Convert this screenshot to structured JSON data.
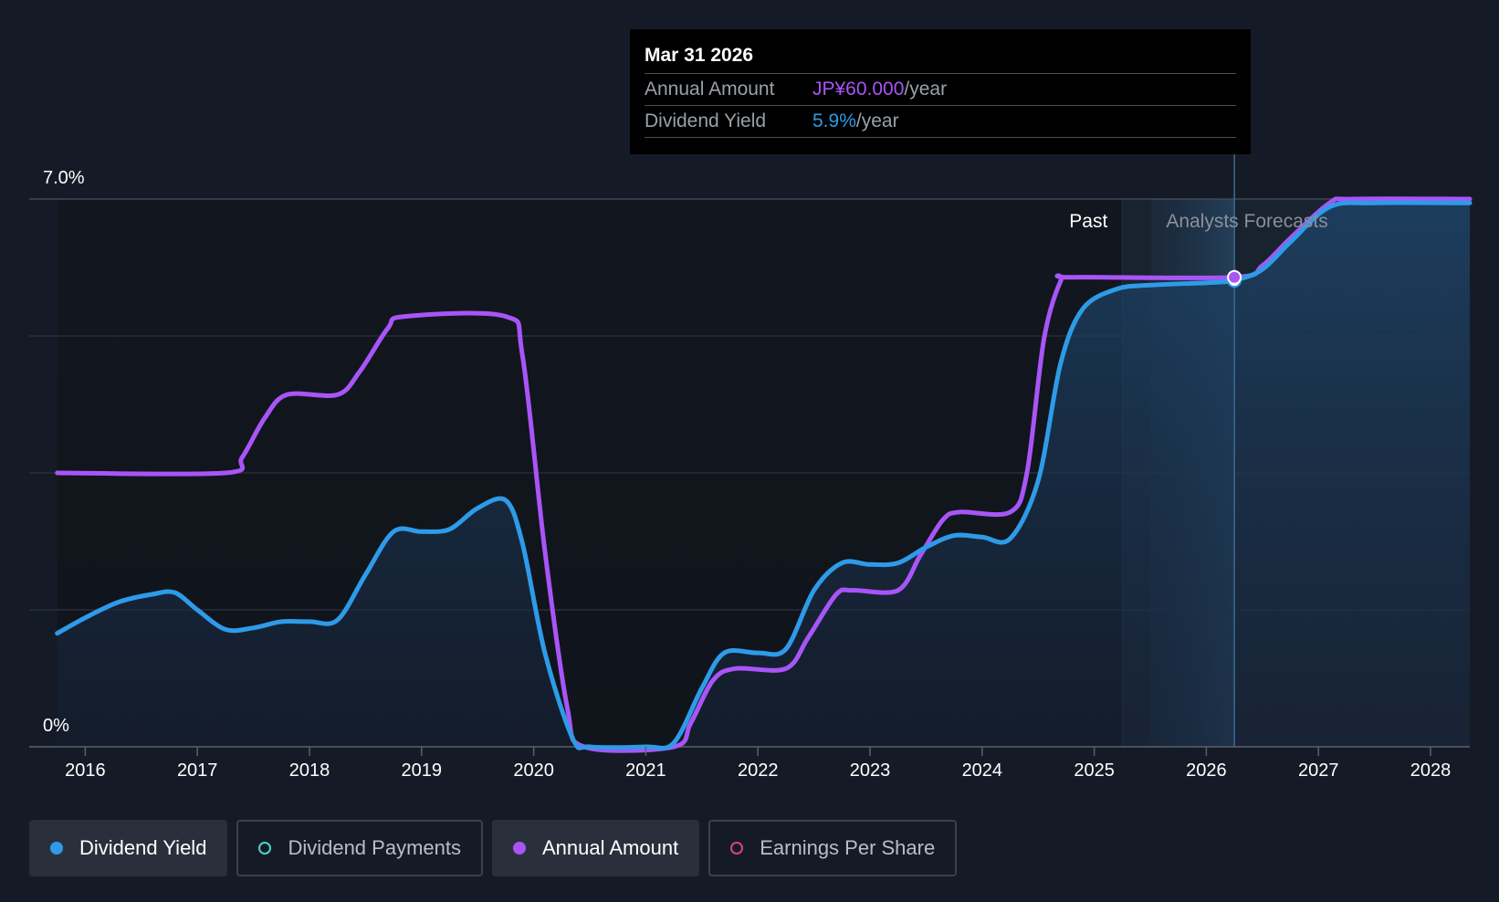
{
  "tooltip": {
    "date": "Mar 31 2026",
    "rows": [
      {
        "label": "Annual Amount",
        "value": "JP¥60.000",
        "unit": "/year",
        "color": "#a855f7"
      },
      {
        "label": "Dividend Yield",
        "value": "5.9%",
        "unit": "/year",
        "color": "#2e9be8"
      }
    ]
  },
  "legend": [
    {
      "label": "Dividend Yield",
      "color": "#2e9be8",
      "active": true,
      "filled": true
    },
    {
      "label": "Dividend Payments",
      "color": "#4fd1c5",
      "active": false,
      "filled": false
    },
    {
      "label": "Annual Amount",
      "color": "#a855f7",
      "active": true,
      "filled": true
    },
    {
      "label": "Earnings Per Share",
      "color": "#d6467d",
      "active": false,
      "filled": false
    }
  ],
  "chart_data": {
    "type": "line",
    "ylim": [
      0,
      7.0
    ],
    "y_tick_labels": [
      "0%",
      "7.0%"
    ],
    "x_tick_labels": [
      "2016",
      "2017",
      "2018",
      "2019",
      "2020",
      "2021",
      "2022",
      "2023",
      "2024",
      "2025",
      "2026",
      "2027",
      "2028"
    ],
    "xlim": [
      2015.5,
      2028.35
    ],
    "region_labels": {
      "past": "Past",
      "forecast": "Analysts Forecasts"
    },
    "highlight": {
      "x": 2026.25
    },
    "series": [
      {
        "name": "Dividend Yield",
        "color": "#2e9be8",
        "points": [
          [
            2015.75,
            1.45
          ],
          [
            2016.0,
            1.65
          ],
          [
            2016.3,
            1.85
          ],
          [
            2016.6,
            1.95
          ],
          [
            2016.8,
            1.97
          ],
          [
            2017.0,
            1.75
          ],
          [
            2017.25,
            1.5
          ],
          [
            2017.5,
            1.52
          ],
          [
            2017.75,
            1.6
          ],
          [
            2018.0,
            1.6
          ],
          [
            2018.25,
            1.62
          ],
          [
            2018.5,
            2.2
          ],
          [
            2018.75,
            2.75
          ],
          [
            2019.0,
            2.75
          ],
          [
            2019.25,
            2.78
          ],
          [
            2019.5,
            3.05
          ],
          [
            2019.75,
            3.15
          ],
          [
            2019.9,
            2.6
          ],
          [
            2020.1,
            1.2
          ],
          [
            2020.35,
            0.1
          ],
          [
            2020.5,
            0.0
          ],
          [
            2021.0,
            0.0
          ],
          [
            2021.25,
            0.05
          ],
          [
            2021.5,
            0.75
          ],
          [
            2021.7,
            1.2
          ],
          [
            2022.0,
            1.2
          ],
          [
            2022.25,
            1.25
          ],
          [
            2022.5,
            2.0
          ],
          [
            2022.75,
            2.35
          ],
          [
            2023.0,
            2.33
          ],
          [
            2023.25,
            2.35
          ],
          [
            2023.5,
            2.55
          ],
          [
            2023.75,
            2.7
          ],
          [
            2024.0,
            2.68
          ],
          [
            2024.25,
            2.66
          ],
          [
            2024.5,
            3.4
          ],
          [
            2024.7,
            4.9
          ],
          [
            2024.9,
            5.6
          ],
          [
            2025.2,
            5.85
          ],
          [
            2025.5,
            5.9
          ],
          [
            2026.0,
            5.93
          ],
          [
            2026.25,
            5.96
          ],
          [
            2026.5,
            6.1
          ],
          [
            2026.75,
            6.45
          ],
          [
            2027.1,
            6.9
          ],
          [
            2027.5,
            6.95
          ],
          [
            2028.35,
            6.95
          ]
        ]
      },
      {
        "name": "Annual Amount",
        "color": "#a855f7",
        "points": [
          [
            2015.75,
            3.5
          ],
          [
            2017.25,
            3.5
          ],
          [
            2017.4,
            3.7
          ],
          [
            2017.6,
            4.2
          ],
          [
            2017.8,
            4.5
          ],
          [
            2018.25,
            4.5
          ],
          [
            2018.45,
            4.8
          ],
          [
            2018.7,
            5.35
          ],
          [
            2018.85,
            5.5
          ],
          [
            2019.75,
            5.5
          ],
          [
            2019.9,
            5.0
          ],
          [
            2020.1,
            2.5
          ],
          [
            2020.3,
            0.5
          ],
          [
            2020.45,
            0.0
          ],
          [
            2021.25,
            0.0
          ],
          [
            2021.4,
            0.3
          ],
          [
            2021.6,
            0.85
          ],
          [
            2021.8,
            1.0
          ],
          [
            2022.25,
            1.0
          ],
          [
            2022.45,
            1.4
          ],
          [
            2022.7,
            1.95
          ],
          [
            2022.85,
            2.0
          ],
          [
            2023.25,
            2.0
          ],
          [
            2023.45,
            2.45
          ],
          [
            2023.65,
            2.9
          ],
          [
            2023.8,
            3.0
          ],
          [
            2024.25,
            3.0
          ],
          [
            2024.4,
            3.5
          ],
          [
            2024.55,
            5.2
          ],
          [
            2024.7,
            5.95
          ],
          [
            2024.8,
            6.0
          ],
          [
            2026.25,
            6.0
          ],
          [
            2026.5,
            6.15
          ],
          [
            2026.75,
            6.5
          ],
          [
            2027.1,
            6.95
          ],
          [
            2027.3,
            7.0
          ],
          [
            2028.35,
            7.0
          ]
        ]
      }
    ]
  }
}
